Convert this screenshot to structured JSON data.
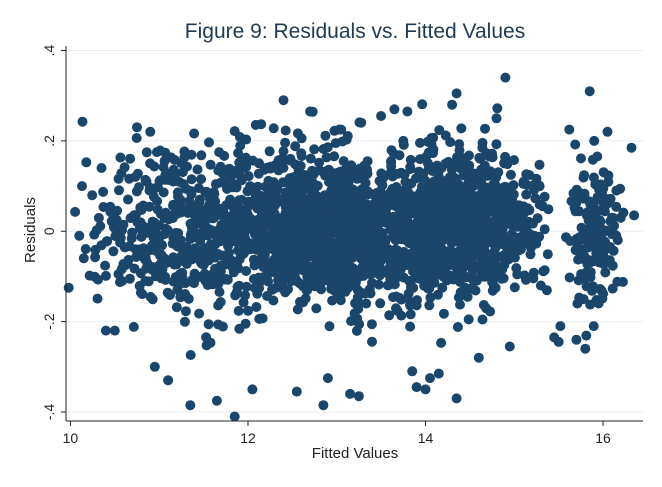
{
  "chart_data": {
    "type": "scatter",
    "title": "Figure 9: Residuals vs. Fitted Values",
    "xlabel": "Fitted Values",
    "ylabel": "Residuals",
    "xlim": [
      9.95,
      16.45
    ],
    "ylim": [
      -0.42,
      0.41
    ],
    "x_ticks": [
      10,
      12,
      14,
      16
    ],
    "x_tick_labels": [
      "10",
      "12",
      "14",
      "16"
    ],
    "y_ticks": [
      -0.4,
      -0.2,
      0,
      0.2,
      0.4
    ],
    "y_tick_labels": [
      "-.4",
      "-.2",
      "0",
      ".2",
      ".4"
    ],
    "grid": true,
    "legend": "none",
    "marker_color": "#1a466b",
    "grid_color": "#e8eef3",
    "title_color": "#1f3a52",
    "background": "#ffffff",
    "series": [
      {
        "points": [
          [
            9.98,
            -0.125
          ],
          [
            10.13,
            0.1
          ],
          [
            10.1,
            -0.01
          ],
          [
            10.15,
            -0.06
          ],
          [
            10.35,
            0.14
          ],
          [
            10.4,
            -0.22
          ],
          [
            10.5,
            -0.22
          ],
          [
            10.75,
            0.23
          ],
          [
            10.9,
            0.22
          ],
          [
            10.95,
            -0.3
          ],
          [
            11.1,
            -0.33
          ],
          [
            11.35,
            -0.385
          ],
          [
            11.65,
            -0.375
          ],
          [
            11.85,
            -0.41
          ],
          [
            12.05,
            -0.35
          ],
          [
            12.4,
            0.29
          ],
          [
            12.55,
            -0.355
          ],
          [
            12.7,
            0.265
          ],
          [
            12.85,
            -0.385
          ],
          [
            12.9,
            -0.325
          ],
          [
            13.05,
            0.225
          ],
          [
            13.15,
            -0.36
          ],
          [
            13.25,
            -0.365
          ],
          [
            13.5,
            0.255
          ],
          [
            13.65,
            0.27
          ],
          [
            13.75,
            0.2
          ],
          [
            13.85,
            -0.31
          ],
          [
            13.9,
            -0.345
          ],
          [
            14.0,
            -0.35
          ],
          [
            14.05,
            -0.325
          ],
          [
            14.15,
            -0.315
          ],
          [
            14.3,
            0.28
          ],
          [
            14.35,
            0.305
          ],
          [
            14.35,
            -0.37
          ],
          [
            14.6,
            -0.28
          ],
          [
            14.8,
            0.25
          ],
          [
            14.9,
            0.34
          ],
          [
            14.95,
            -0.255
          ],
          [
            15.3,
            -0.12
          ],
          [
            15.45,
            -0.235
          ],
          [
            15.5,
            -0.245
          ],
          [
            15.52,
            -0.21
          ],
          [
            15.62,
            0.225
          ],
          [
            15.7,
            -0.24
          ],
          [
            15.8,
            -0.26
          ],
          [
            15.85,
            0.31
          ],
          [
            15.9,
            0.2
          ],
          [
            15.95,
            -0.16
          ],
          [
            15.98,
            0.07
          ],
          [
            16.05,
            0.22
          ],
          [
            16.1,
            0.03
          ],
          [
            16.2,
            0.03
          ],
          [
            16.32,
            0.185
          ],
          [
            16.35,
            0.035
          ],
          [
            16.15,
            0.09
          ]
        ]
      }
    ],
    "clusters": [
      {
        "cx": 12.9,
        "cy": 0.0,
        "sx": 0.75,
        "sy": 0.085,
        "n": 1500,
        "xmin": 10.4,
        "xmax": 15.2
      },
      {
        "cx": 14.5,
        "cy": 0.02,
        "sx": 0.45,
        "sy": 0.075,
        "n": 750,
        "xmin": 13.6,
        "xmax": 15.4
      },
      {
        "cx": 11.3,
        "cy": 0.0,
        "sx": 0.45,
        "sy": 0.09,
        "n": 260,
        "xmin": 10.2,
        "xmax": 12.0
      },
      {
        "cx": 15.9,
        "cy": 0.0,
        "sx": 0.14,
        "sy": 0.075,
        "n": 160,
        "xmin": 15.55,
        "xmax": 16.28
      },
      {
        "cx": 10.6,
        "cy": 0.0,
        "sx": 0.3,
        "sy": 0.075,
        "n": 45,
        "xmin": 10.05,
        "xmax": 11.0
      }
    ]
  }
}
